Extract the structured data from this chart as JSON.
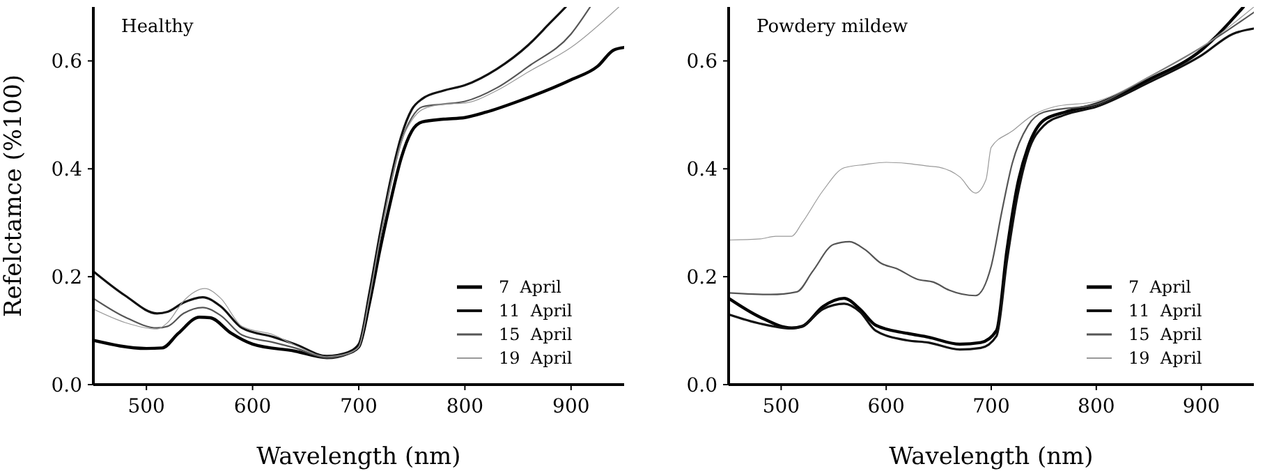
{
  "chart_data": [
    {
      "type": "line",
      "title": "Healthy",
      "xlabel": "Wavelength (nm)",
      "ylabel": "Refelctamce (%100)",
      "xlim": [
        450,
        950
      ],
      "ylim": [
        0,
        0.7
      ],
      "xticks": [
        500,
        600,
        700,
        800,
        900
      ],
      "yticks": [
        {
          "value": 0,
          "label": "0.0"
        },
        0.2,
        0.4,
        0.6
      ],
      "legend": "bottom right",
      "grid": false,
      "series": [
        {
          "name": "7  April",
          "color": "#000000",
          "x": [
            450,
            500,
            515,
            530,
            550,
            560,
            580,
            600,
            640,
            670,
            690,
            700,
            710,
            720,
            730,
            740,
            750,
            760,
            780,
            800,
            820,
            850,
            900,
            925,
            940,
            950
          ],
          "values": [
            0.082,
            0.067,
            0.068,
            0.095,
            0.125,
            0.124,
            0.095,
            0.075,
            0.062,
            0.05,
            0.058,
            0.07,
            0.15,
            0.25,
            0.34,
            0.42,
            0.47,
            0.487,
            0.492,
            0.495,
            0.505,
            0.525,
            0.565,
            0.59,
            0.62,
            0.625
          ]
        },
        {
          "name": "11  April",
          "color": "#111111",
          "x": [
            450,
            480,
            510,
            520,
            535,
            553,
            570,
            590,
            620,
            640,
            670,
            690,
            700,
            710,
            720,
            730,
            740,
            750,
            760,
            780,
            800,
            830,
            860,
            880,
            895
          ],
          "values": [
            0.21,
            0.165,
            0.132,
            0.135,
            0.152,
            0.162,
            0.145,
            0.105,
            0.088,
            0.075,
            0.053,
            0.06,
            0.075,
            0.17,
            0.28,
            0.38,
            0.46,
            0.51,
            0.53,
            0.545,
            0.555,
            0.585,
            0.63,
            0.67,
            0.7
          ]
        },
        {
          "name": "15  April",
          "color": "#555555",
          "x": [
            450,
            480,
            510,
            520,
            535,
            553,
            570,
            590,
            620,
            640,
            670,
            690,
            700,
            710,
            720,
            730,
            740,
            750,
            760,
            780,
            800,
            830,
            860,
            900,
            918
          ],
          "values": [
            0.16,
            0.125,
            0.105,
            0.108,
            0.132,
            0.143,
            0.128,
            0.092,
            0.078,
            0.068,
            0.05,
            0.057,
            0.07,
            0.16,
            0.27,
            0.37,
            0.45,
            0.495,
            0.515,
            0.52,
            0.525,
            0.55,
            0.59,
            0.65,
            0.7
          ]
        },
        {
          "name": "19  April",
          "color": "#999999",
          "x": [
            450,
            480,
            510,
            520,
            535,
            555,
            570,
            590,
            620,
            640,
            670,
            690,
            700,
            710,
            720,
            730,
            740,
            750,
            760,
            780,
            800,
            830,
            860,
            900,
            945
          ],
          "values": [
            0.14,
            0.115,
            0.103,
            0.115,
            0.155,
            0.178,
            0.16,
            0.108,
            0.092,
            0.073,
            0.052,
            0.058,
            0.07,
            0.16,
            0.27,
            0.37,
            0.45,
            0.49,
            0.51,
            0.52,
            0.522,
            0.545,
            0.58,
            0.625,
            0.7
          ]
        }
      ]
    },
    {
      "type": "line",
      "title": "Powdery mildew",
      "xlabel": "Wavelength (nm)",
      "xlim": [
        450,
        950
      ],
      "ylim": [
        0,
        0.7
      ],
      "xticks": [
        500,
        600,
        700,
        800,
        900
      ],
      "yticks": [
        {
          "value": 0,
          "label": "0.0"
        },
        0.2,
        0.4,
        0.6
      ],
      "legend": "bottom right",
      "grid": false,
      "series": [
        {
          "name": "7  April",
          "color": "#000000",
          "x": [
            450,
            480,
            510,
            520,
            540,
            560,
            575,
            590,
            620,
            640,
            670,
            690,
            705,
            715,
            725,
            735,
            750,
            770,
            800,
            850,
            900,
            940
          ],
          "values": [
            0.16,
            0.125,
            0.105,
            0.108,
            0.145,
            0.16,
            0.14,
            0.11,
            0.095,
            0.088,
            0.075,
            0.078,
            0.1,
            0.25,
            0.37,
            0.44,
            0.49,
            0.505,
            0.52,
            0.565,
            0.62,
            0.7
          ]
        },
        {
          "name": "11  April",
          "color": "#111111",
          "x": [
            450,
            480,
            510,
            520,
            540,
            560,
            575,
            590,
            620,
            640,
            670,
            690,
            705,
            715,
            725,
            735,
            750,
            770,
            800,
            850,
            900,
            930,
            950
          ],
          "values": [
            0.13,
            0.113,
            0.104,
            0.108,
            0.14,
            0.15,
            0.135,
            0.1,
            0.082,
            0.078,
            0.065,
            0.068,
            0.09,
            0.23,
            0.35,
            0.43,
            0.48,
            0.5,
            0.515,
            0.56,
            0.61,
            0.65,
            0.66
          ]
        },
        {
          "name": "15  April",
          "color": "#555555",
          "x": [
            450,
            490,
            515,
            530,
            550,
            565,
            580,
            595,
            610,
            630,
            645,
            660,
            685,
            700,
            710,
            720,
            735,
            750,
            800,
            850,
            900,
            950
          ],
          "values": [
            0.17,
            0.167,
            0.172,
            0.21,
            0.26,
            0.265,
            0.25,
            0.225,
            0.215,
            0.195,
            0.19,
            0.175,
            0.165,
            0.22,
            0.32,
            0.41,
            0.48,
            0.505,
            0.52,
            0.57,
            0.625,
            0.69
          ]
        },
        {
          "name": "19  April",
          "color": "#999999",
          "x": [
            450,
            480,
            495,
            510,
            520,
            540,
            560,
            580,
            600,
            620,
            640,
            650,
            670,
            685,
            695,
            700,
            720,
            740,
            760,
            800,
            850,
            900,
            950
          ],
          "values": [
            0.268,
            0.27,
            0.275,
            0.275,
            0.3,
            0.36,
            0.402,
            0.408,
            0.412,
            0.41,
            0.405,
            0.403,
            0.385,
            0.355,
            0.38,
            0.44,
            0.47,
            0.5,
            0.515,
            0.525,
            0.57,
            0.625,
            0.7
          ]
        }
      ]
    }
  ]
}
